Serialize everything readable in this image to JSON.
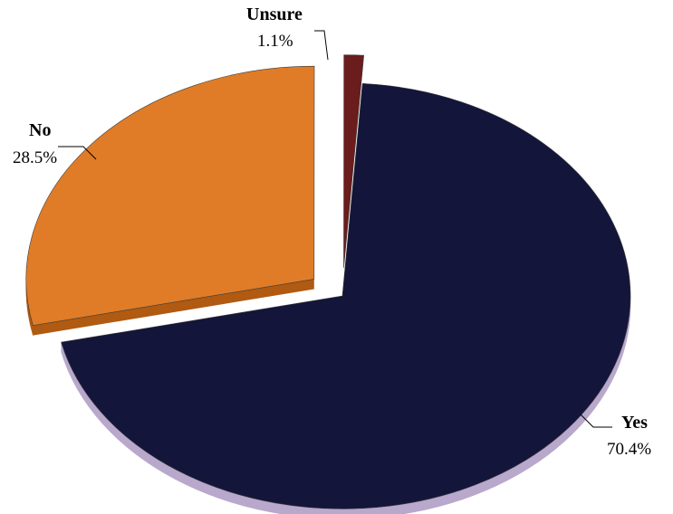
{
  "chart_data": {
    "type": "pie",
    "title": "",
    "exploded": true,
    "slices": [
      {
        "label": "Yes",
        "value": 70.4,
        "value_label": "70.4%",
        "color": "#14153a",
        "side_color": "#b8a8cc"
      },
      {
        "label": "No",
        "value": 28.5,
        "value_label": "28.5%",
        "color": "#e07c27",
        "side_color": "#b05a12"
      },
      {
        "label": "Unsure",
        "value": 1.1,
        "value_label": "1.1%",
        "color": "#6b1c1c",
        "side_color": "#3e0e0e"
      }
    ]
  }
}
